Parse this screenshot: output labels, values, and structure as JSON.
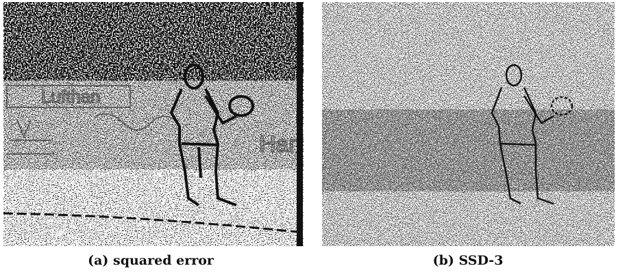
{
  "figures": [
    {
      "caption": "(a) squared error"
    },
    {
      "caption": "(b) SSD-3"
    }
  ]
}
